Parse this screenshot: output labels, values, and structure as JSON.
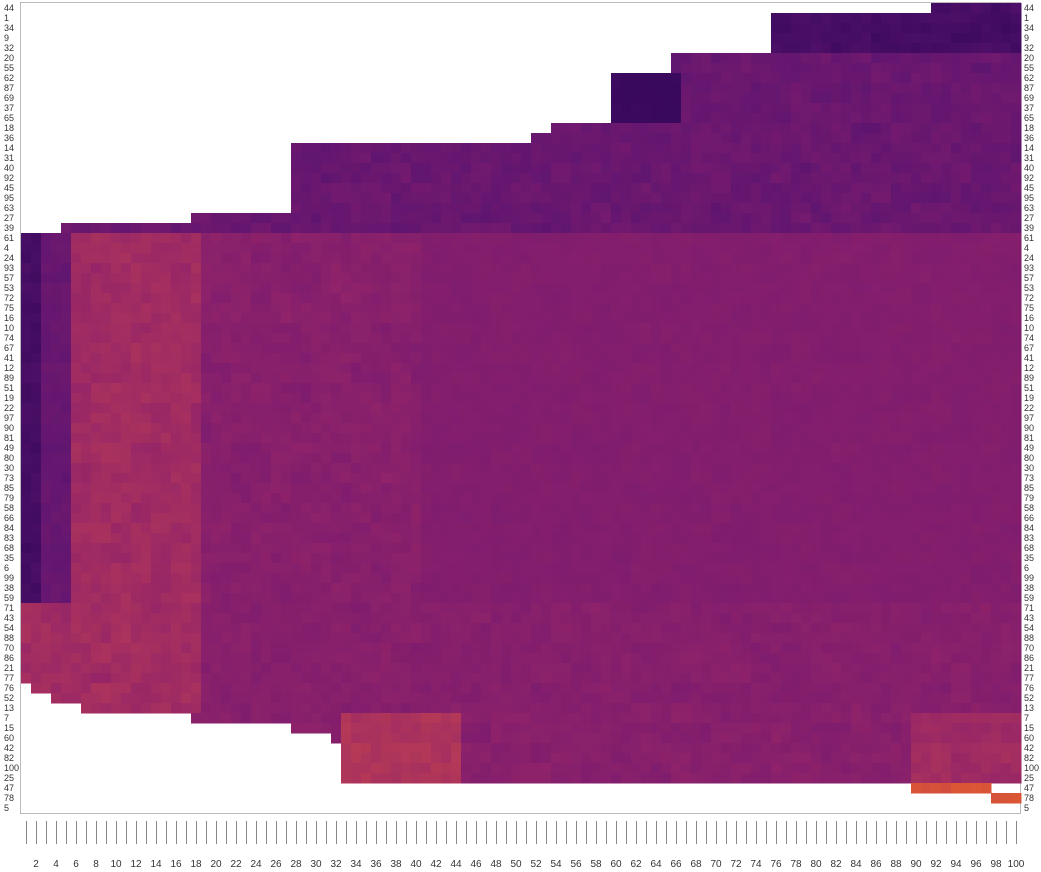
{
  "chart_data": {
    "type": "heatmap",
    "title": "",
    "xlabel": "",
    "ylabel": "",
    "x_range": [
      1,
      100
    ],
    "x_tick_labels": [
      "2",
      "4",
      "6",
      "8",
      "10",
      "12",
      "14",
      "16",
      "18",
      "20",
      "22",
      "24",
      "26",
      "28",
      "30",
      "32",
      "34",
      "36",
      "38",
      "40",
      "42",
      "44",
      "46",
      "48",
      "50",
      "52",
      "54",
      "56",
      "58",
      "60",
      "62",
      "64",
      "66",
      "68",
      "70",
      "72",
      "74",
      "76",
      "78",
      "80",
      "82",
      "84",
      "86",
      "88",
      "90",
      "92",
      "94",
      "96",
      "98",
      "100"
    ],
    "y_labels": [
      "44",
      "1",
      "34",
      "9",
      "32",
      "20",
      "55",
      "62",
      "87",
      "69",
      "37",
      "65",
      "18",
      "36",
      "14",
      "31",
      "40",
      "92",
      "45",
      "95",
      "63",
      "27",
      "39",
      "61",
      "4",
      "24",
      "93",
      "57",
      "53",
      "72",
      "75",
      "16",
      "10",
      "74",
      "67",
      "41",
      "12",
      "89",
      "51",
      "19",
      "22",
      "97",
      "90",
      "81",
      "49",
      "80",
      "30",
      "73",
      "85",
      "79",
      "58",
      "66",
      "84",
      "83",
      "68",
      "35",
      "6",
      "99",
      "38",
      "59",
      "71",
      "43",
      "54",
      "88",
      "70",
      "86",
      "21",
      "77",
      "76",
      "52",
      "13",
      "7",
      "15",
      "60",
      "42",
      "82",
      "100",
      "25",
      "47",
      "78",
      "5"
    ],
    "row_start": [
      92,
      76,
      76,
      76,
      76,
      66,
      66,
      60,
      60,
      60,
      60,
      60,
      54,
      52,
      28,
      28,
      28,
      28,
      28,
      28,
      28,
      18,
      5,
      1,
      1,
      1,
      1,
      1,
      1,
      1,
      1,
      1,
      1,
      1,
      1,
      1,
      1,
      1,
      1,
      1,
      1,
      1,
      1,
      1,
      1,
      1,
      1,
      1,
      1,
      1,
      1,
      1,
      1,
      1,
      1,
      1,
      1,
      1,
      1,
      1,
      1,
      1,
      1,
      1,
      1,
      1,
      1,
      1,
      2,
      4,
      7,
      18,
      28,
      32,
      33,
      33,
      33,
      33,
      90,
      98,
      101
    ],
    "colorscale": "inferno (dark purple = low, orange = high)",
    "colors": {
      "background": "#ffffff",
      "dark": "#3d0a5f",
      "low": "#5e1570",
      "mid": "#7e1c6e",
      "midhigh": "#952568",
      "high": "#b73a55",
      "peak": "#e05a30"
    }
  }
}
